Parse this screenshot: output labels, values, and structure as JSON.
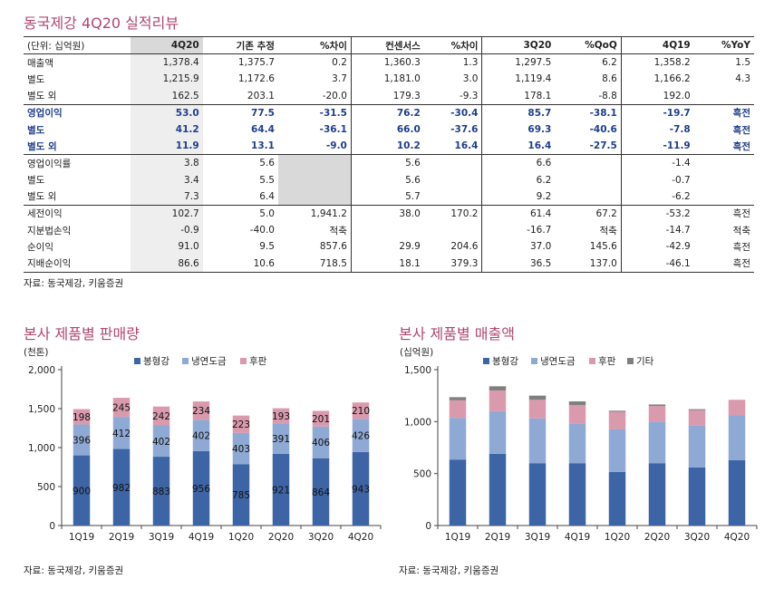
{
  "page": {
    "title_top": "동국제강 4Q20 실적리뷰",
    "source_top": "자료: 동국제강, 키움증권",
    "title_left": "본사 제품별 판매량",
    "title_right": "본사 제품별 매출액",
    "source_left": "자료: 동국제강, 키움증권",
    "source_right": "자료: 동국제강, 키움증권"
  },
  "table": {
    "headers": [
      "(단위: 십억원)",
      "4Q20",
      "기존 추정",
      "%차이",
      "컨센서스",
      "%차이",
      "3Q20",
      "%QoQ",
      "4Q19",
      "%YoY"
    ],
    "rows": [
      {
        "cells": [
          "매출액",
          "1,378.4",
          "1,375.7",
          "0.2",
          "1,360.3",
          "1.3",
          "1,297.5",
          "6.2",
          "1,358.2",
          "1.5"
        ]
      },
      {
        "cells": [
          "  별도",
          "1,215.9",
          "1,172.6",
          "3.7",
          "1,181.0",
          "3.0",
          "1,119.4",
          "8.6",
          "1,166.2",
          "4.3"
        ]
      },
      {
        "cells": [
          "  별도 외",
          "162.5",
          "203.1",
          "-20.0",
          "179.3",
          "-9.3",
          "178.1",
          "-8.8",
          "192.0",
          ""
        ]
      },
      {
        "cells": [
          "영업이익",
          "53.0",
          "77.5",
          "-31.5",
          "76.2",
          "-30.4",
          "85.7",
          "-38.1",
          "-19.7",
          "흑전"
        ]
      },
      {
        "cells": [
          "  별도",
          "41.2",
          "64.4",
          "-36.1",
          "66.0",
          "-37.6",
          "69.3",
          "-40.6",
          "-7.8",
          "흑전"
        ]
      },
      {
        "cells": [
          "  별도 외",
          "11.9",
          "13.1",
          "-9.0",
          "10.2",
          "16.4",
          "16.4",
          "-27.5",
          "-11.9",
          "흑전"
        ]
      },
      {
        "cells": [
          "영업이익률",
          "3.8",
          "5.6",
          "",
          "5.6",
          "",
          "6.6",
          "",
          "-1.4",
          ""
        ]
      },
      {
        "cells": [
          "  별도",
          "3.4",
          "5.5",
          "",
          "5.6",
          "",
          "6.2",
          "",
          "-0.7",
          ""
        ]
      },
      {
        "cells": [
          "  별도 외",
          "7.3",
          "6.4",
          "",
          "5.7",
          "",
          "9.2",
          "",
          "-6.2",
          ""
        ]
      },
      {
        "cells": [
          "세전이익",
          "102.7",
          "5.0",
          "1,941.2",
          "38.0",
          "170.2",
          "61.4",
          "67.2",
          "-53.2",
          "흑전"
        ]
      },
      {
        "cells": [
          "  지분법손익",
          "-0.9",
          "-40.0",
          "적축",
          "",
          "",
          "-16.7",
          "적축",
          "-14.7",
          "적축"
        ]
      },
      {
        "cells": [
          "순이익",
          "91.0",
          "9.5",
          "857.6",
          "29.9",
          "204.6",
          "37.0",
          "145.6",
          "-42.9",
          "흑전"
        ]
      },
      {
        "cells": [
          "지배순이익",
          "86.6",
          "10.6",
          "718.5",
          "18.1",
          "379.3",
          "36.5",
          "137.0",
          "-46.1",
          "흑전"
        ]
      }
    ]
  },
  "chart_data": [
    {
      "type": "bar",
      "stacked": true,
      "title": "본사 제품별 판매량",
      "ylabel": "(천톤)",
      "ylim": [
        0,
        2000
      ],
      "yticks": [
        "0",
        "500",
        "1,000",
        "1,500",
        "2,000"
      ],
      "ytick_values": [
        0,
        500,
        1000,
        1500,
        2000
      ],
      "categories": [
        "1Q19",
        "2Q19",
        "3Q19",
        "4Q19",
        "1Q20",
        "2Q20",
        "3Q20",
        "4Q20"
      ],
      "legend_position": "top",
      "series": [
        {
          "name": "봉형강",
          "color": "#3d64a4",
          "values": [
            900,
            982,
            883,
            956,
            785,
            921,
            864,
            943
          ]
        },
        {
          "name": "냉연도금",
          "color": "#8ea9d3",
          "values": [
            396,
            412,
            402,
            402,
            403,
            391,
            406,
            426
          ]
        },
        {
          "name": "후판",
          "color": "#d99aae",
          "values": [
            198,
            245,
            242,
            234,
            223,
            193,
            201,
            210
          ]
        }
      ],
      "show_data_labels": true
    },
    {
      "type": "bar",
      "stacked": true,
      "title": "본사 제품별 매출액",
      "ylabel": "(십억원)",
      "ylim": [
        0,
        1500
      ],
      "yticks": [
        "0",
        "500",
        "1,000",
        "1,500"
      ],
      "ytick_values": [
        0,
        500,
        1000,
        1500
      ],
      "categories": [
        "1Q19",
        "2Q19",
        "3Q19",
        "4Q19",
        "1Q20",
        "2Q20",
        "3Q20",
        "4Q20"
      ],
      "legend_position": "top",
      "series": [
        {
          "name": "봉형강",
          "color": "#3d64a4",
          "values": [
            635,
            690,
            600,
            600,
            515,
            600,
            560,
            630
          ]
        },
        {
          "name": "냉연도금",
          "color": "#8ea9d3",
          "values": [
            400,
            410,
            430,
            380,
            410,
            400,
            400,
            430
          ]
        },
        {
          "name": "후판",
          "color": "#d99aae",
          "values": [
            170,
            200,
            180,
            180,
            170,
            150,
            150,
            150
          ]
        },
        {
          "name": "기타",
          "color": "#7f7f7f",
          "values": [
            30,
            40,
            40,
            35,
            10,
            15,
            10,
            0
          ]
        }
      ],
      "show_data_labels": false
    }
  ]
}
